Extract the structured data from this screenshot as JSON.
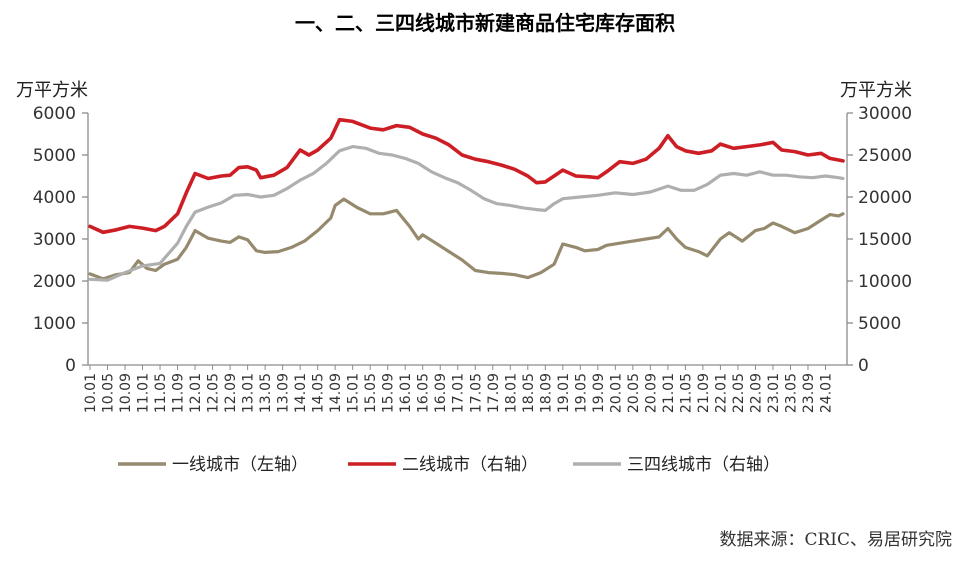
{
  "chart_data": {
    "type": "line",
    "title": "一、二、三四线城市新建商品住宅库存面积",
    "y_left_unit": "万平方米",
    "y_right_unit": "万平方米",
    "y_left_range": [
      0,
      6000
    ],
    "y_left_ticks": [
      "0",
      "1000",
      "2000",
      "3000",
      "4000",
      "5000",
      "6000"
    ],
    "y_right_range": [
      0,
      30000
    ],
    "y_right_ticks": [
      "0",
      "5000",
      "10000",
      "15000",
      "20000",
      "25000",
      "30000"
    ],
    "x_ticks": [
      "10.01",
      "10.05",
      "10.09",
      "11.01",
      "11.05",
      "11.09",
      "12.01",
      "12.05",
      "12.09",
      "13.01",
      "13.05",
      "13.09",
      "14.01",
      "14.05",
      "14.09",
      "15.01",
      "15.05",
      "15.09",
      "16.01",
      "16.05",
      "16.09",
      "17.01",
      "17.05",
      "17.09",
      "18.01",
      "18.05",
      "18.09",
      "19.01",
      "19.05",
      "19.09",
      "20.01",
      "20.05",
      "20.09",
      "21.01",
      "21.05",
      "21.09",
      "22.01",
      "22.05",
      "22.09",
      "23.01",
      "23.05",
      "23.09",
      "24.01"
    ],
    "grid": false,
    "legend_position": "bottom",
    "series": [
      {
        "name": "一线城市（左轴）",
        "axis": "left",
        "color": "#968A6E",
        "anchors": [
          [
            "10.01",
            2170
          ],
          [
            "10.04",
            2050
          ],
          [
            "10.07",
            2150
          ],
          [
            "10.10",
            2200
          ],
          [
            "10.12",
            2480
          ],
          [
            "11.02",
            2300
          ],
          [
            "11.04",
            2250
          ],
          [
            "11.06",
            2400
          ],
          [
            "11.09",
            2520
          ],
          [
            "11.11",
            2800
          ],
          [
            "12.01",
            3200
          ],
          [
            "12.04",
            3020
          ],
          [
            "12.07",
            2950
          ],
          [
            "12.09",
            2920
          ],
          [
            "12.11",
            3050
          ],
          [
            "13.01",
            2980
          ],
          [
            "13.03",
            2720
          ],
          [
            "13.05",
            2680
          ],
          [
            "13.08",
            2700
          ],
          [
            "13.11",
            2800
          ],
          [
            "14.02",
            2950
          ],
          [
            "14.05",
            3200
          ],
          [
            "14.08",
            3500
          ],
          [
            "14.09",
            3800
          ],
          [
            "14.11",
            3950
          ],
          [
            "15.02",
            3750
          ],
          [
            "15.05",
            3600
          ],
          [
            "15.08",
            3600
          ],
          [
            "15.11",
            3680
          ],
          [
            "16.02",
            3300
          ],
          [
            "16.04",
            3000
          ],
          [
            "16.05",
            3100
          ],
          [
            "16.08",
            2900
          ],
          [
            "16.11",
            2700
          ],
          [
            "17.02",
            2500
          ],
          [
            "17.05",
            2250
          ],
          [
            "17.08",
            2200
          ],
          [
            "17.11",
            2180
          ],
          [
            "18.02",
            2150
          ],
          [
            "18.05",
            2080
          ],
          [
            "18.08",
            2200
          ],
          [
            "18.11",
            2400
          ],
          [
            "19.01",
            2880
          ],
          [
            "19.04",
            2800
          ],
          [
            "19.06",
            2720
          ],
          [
            "19.09",
            2750
          ],
          [
            "19.11",
            2850
          ],
          [
            "20.02",
            2900
          ],
          [
            "20.05",
            2950
          ],
          [
            "20.08",
            3000
          ],
          [
            "20.11",
            3050
          ],
          [
            "21.01",
            3250
          ],
          [
            "21.03",
            3000
          ],
          [
            "21.05",
            2800
          ],
          [
            "21.08",
            2700
          ],
          [
            "21.10",
            2600
          ],
          [
            "22.01",
            3000
          ],
          [
            "22.03",
            3150
          ],
          [
            "22.06",
            2950
          ],
          [
            "22.09",
            3200
          ],
          [
            "22.11",
            3250
          ],
          [
            "23.01",
            3380
          ],
          [
            "23.03",
            3300
          ],
          [
            "23.06",
            3150
          ],
          [
            "23.09",
            3250
          ],
          [
            "23.12",
            3450
          ],
          [
            "24.02",
            3580
          ],
          [
            "24.04",
            3550
          ],
          [
            "24.05",
            3600
          ]
        ]
      },
      {
        "name": "二线城市（右轴）",
        "axis": "right",
        "color": "#CC1E24",
        "anchors": [
          [
            "10.01",
            16500
          ],
          [
            "10.04",
            15800
          ],
          [
            "10.07",
            16100
          ],
          [
            "10.10",
            16500
          ],
          [
            "11.01",
            16300
          ],
          [
            "11.04",
            16000
          ],
          [
            "11.06",
            16500
          ],
          [
            "11.09",
            18000
          ],
          [
            "11.11",
            20500
          ],
          [
            "12.01",
            22800
          ],
          [
            "12.04",
            22200
          ],
          [
            "12.07",
            22500
          ],
          [
            "12.09",
            22600
          ],
          [
            "12.11",
            23500
          ],
          [
            "13.01",
            23600
          ],
          [
            "13.03",
            23200
          ],
          [
            "13.04",
            22300
          ],
          [
            "13.07",
            22600
          ],
          [
            "13.10",
            23500
          ],
          [
            "14.01",
            25600
          ],
          [
            "14.03",
            25000
          ],
          [
            "14.05",
            25600
          ],
          [
            "14.08",
            27000
          ],
          [
            "14.10",
            29200
          ],
          [
            "15.01",
            29000
          ],
          [
            "15.05",
            28200
          ],
          [
            "15.08",
            28000
          ],
          [
            "15.11",
            28500
          ],
          [
            "16.02",
            28300
          ],
          [
            "16.05",
            27500
          ],
          [
            "16.08",
            27000
          ],
          [
            "16.11",
            26200
          ],
          [
            "17.02",
            25000
          ],
          [
            "17.05",
            24500
          ],
          [
            "17.08",
            24200
          ],
          [
            "17.11",
            23800
          ],
          [
            "18.02",
            23300
          ],
          [
            "18.05",
            22500
          ],
          [
            "18.07",
            21700
          ],
          [
            "18.09",
            21800
          ],
          [
            "18.11",
            22500
          ],
          [
            "19.01",
            23200
          ],
          [
            "19.04",
            22500
          ],
          [
            "19.07",
            22400
          ],
          [
            "19.09",
            22300
          ],
          [
            "19.11",
            23000
          ],
          [
            "20.02",
            24200
          ],
          [
            "20.05",
            24000
          ],
          [
            "20.08",
            24500
          ],
          [
            "20.11",
            25800
          ],
          [
            "21.01",
            27300
          ],
          [
            "21.03",
            26000
          ],
          [
            "21.05",
            25500
          ],
          [
            "21.08",
            25200
          ],
          [
            "21.11",
            25500
          ],
          [
            "22.01",
            26300
          ],
          [
            "22.04",
            25800
          ],
          [
            "22.07",
            26000
          ],
          [
            "22.10",
            26200
          ],
          [
            "23.01",
            26500
          ],
          [
            "23.03",
            25600
          ],
          [
            "23.06",
            25400
          ],
          [
            "23.09",
            25000
          ],
          [
            "23.12",
            25200
          ],
          [
            "24.02",
            24600
          ],
          [
            "24.04",
            24400
          ],
          [
            "24.05",
            24300
          ]
        ]
      },
      {
        "name": "三四线城市（右轴）",
        "axis": "right",
        "color": "#AFAFAF",
        "anchors": [
          [
            "10.01",
            10200
          ],
          [
            "10.05",
            10100
          ],
          [
            "10.09",
            11000
          ],
          [
            "11.01",
            11800
          ],
          [
            "11.05",
            12100
          ],
          [
            "11.09",
            14500
          ],
          [
            "11.11",
            16500
          ],
          [
            "12.01",
            18200
          ],
          [
            "12.04",
            18800
          ],
          [
            "12.07",
            19300
          ],
          [
            "12.10",
            20200
          ],
          [
            "13.01",
            20300
          ],
          [
            "13.04",
            20000
          ],
          [
            "13.07",
            20200
          ],
          [
            "13.10",
            21000
          ],
          [
            "14.01",
            22000
          ],
          [
            "14.04",
            22800
          ],
          [
            "14.07",
            24000
          ],
          [
            "14.10",
            25500
          ],
          [
            "15.01",
            26000
          ],
          [
            "15.04",
            25800
          ],
          [
            "15.07",
            25200
          ],
          [
            "15.10",
            25000
          ],
          [
            "16.01",
            24600
          ],
          [
            "16.04",
            24000
          ],
          [
            "16.07",
            23000
          ],
          [
            "16.10",
            22300
          ],
          [
            "17.01",
            21700
          ],
          [
            "17.04",
            20800
          ],
          [
            "17.07",
            19800
          ],
          [
            "17.10",
            19200
          ],
          [
            "18.01",
            19000
          ],
          [
            "18.04",
            18700
          ],
          [
            "18.07",
            18500
          ],
          [
            "18.09",
            18400
          ],
          [
            "18.11",
            19200
          ],
          [
            "19.01",
            19800
          ],
          [
            "19.05",
            20000
          ],
          [
            "19.09",
            20200
          ],
          [
            "20.01",
            20500
          ],
          [
            "20.05",
            20300
          ],
          [
            "20.09",
            20600
          ],
          [
            "21.01",
            21300
          ],
          [
            "21.04",
            20800
          ],
          [
            "21.07",
            20800
          ],
          [
            "21.10",
            21500
          ],
          [
            "22.01",
            22600
          ],
          [
            "22.04",
            22800
          ],
          [
            "22.07",
            22600
          ],
          [
            "22.10",
            23000
          ],
          [
            "23.01",
            22600
          ],
          [
            "23.04",
            22600
          ],
          [
            "23.07",
            22400
          ],
          [
            "23.10",
            22300
          ],
          [
            "24.01",
            22500
          ],
          [
            "24.04",
            22300
          ],
          [
            "24.05",
            22200
          ]
        ]
      }
    ]
  },
  "source": "数据来源：CRIC、易居研究院"
}
